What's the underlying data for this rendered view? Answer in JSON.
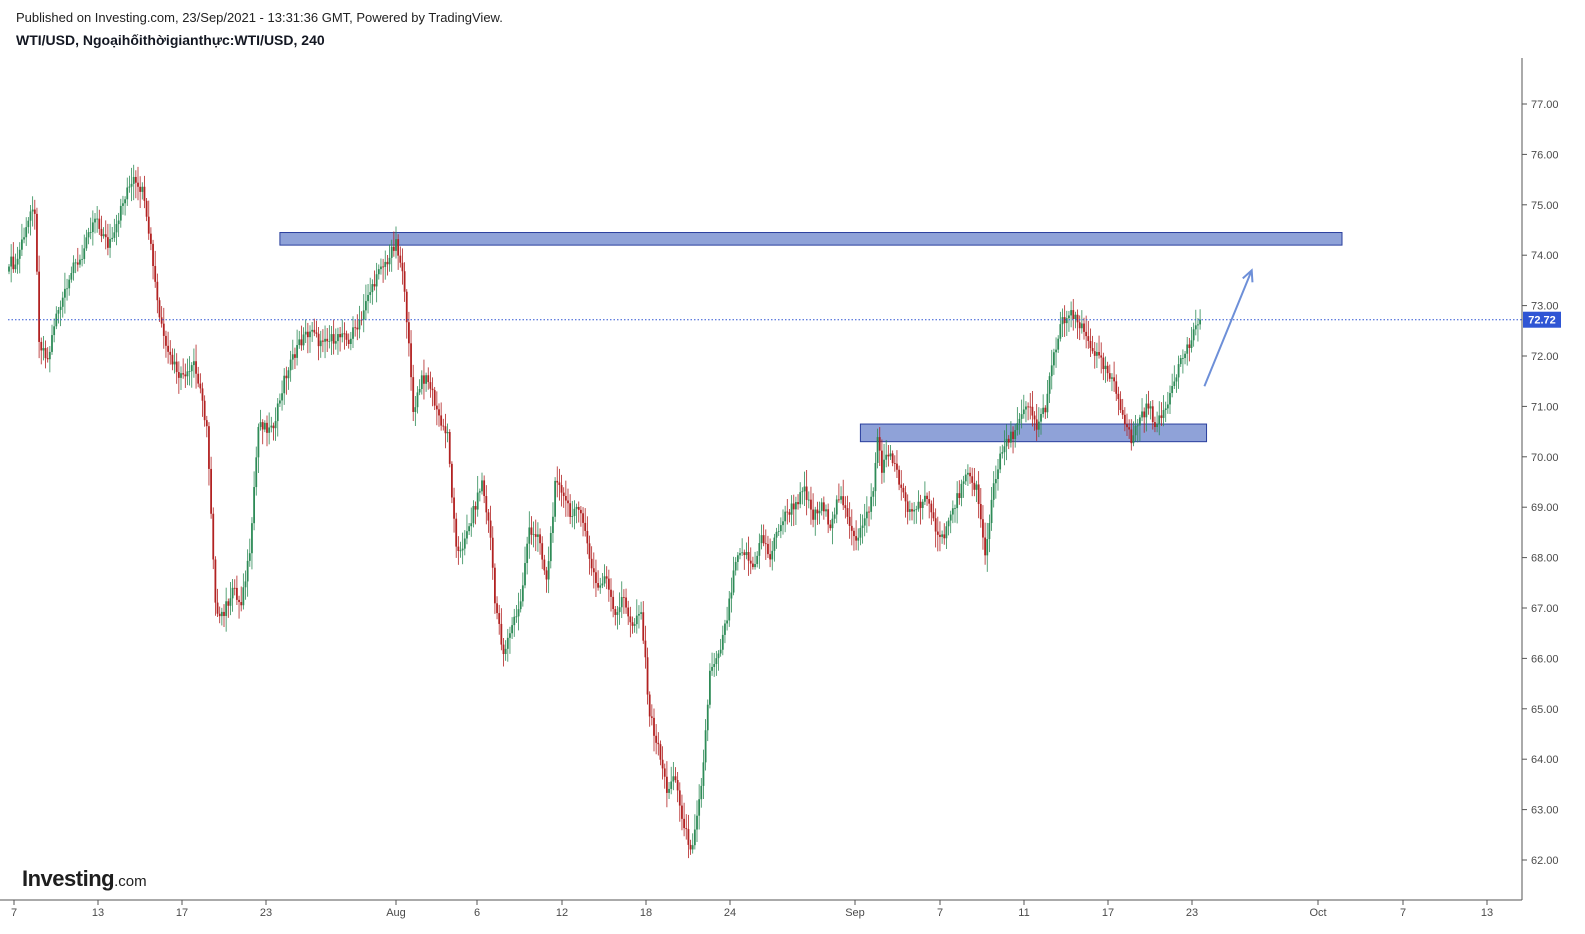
{
  "header": {
    "published": "Published on Investing.com, 23/Sep/2021 - 13:31:36 GMT, Powered by TradingView.",
    "symbol": "WTI/USD, Ngoạihốithờigianthực:WTI/USD, 240"
  },
  "logo": {
    "main": "Investing",
    "domain": ".com"
  },
  "colors": {
    "up": "#2e8b57",
    "down": "#b22222",
    "accent": "#2f55d4",
    "zone_fill": "#8fa2d8",
    "zone_border": "#2a3f9e",
    "arrow": "#6d8fd8"
  },
  "chart_data": {
    "type": "candlestick",
    "ylim": [
      61.6,
      78.0
    ],
    "y_ticks": [
      "62.00",
      "63.00",
      "64.00",
      "65.00",
      "66.00",
      "67.00",
      "68.00",
      "69.00",
      "70.00",
      "71.00",
      "72.00",
      "73.00",
      "74.00",
      "75.00",
      "76.00",
      "77.00"
    ],
    "x_ticks": [
      "7",
      "13",
      "17",
      "23",
      "Aug",
      "6",
      "12",
      "18",
      "24",
      "Sep",
      "7",
      "11",
      "17",
      "23",
      "Oct",
      "7",
      "13"
    ],
    "last_price": "72.72",
    "price_path": [
      [
        0,
        73.9
      ],
      [
        3,
        73.8
      ],
      [
        8,
        74.6
      ],
      [
        12,
        74.9
      ],
      [
        14,
        72.2
      ],
      [
        18,
        71.9
      ],
      [
        22,
        72.8
      ],
      [
        28,
        73.6
      ],
      [
        34,
        74.0
      ],
      [
        40,
        74.7
      ],
      [
        46,
        74.2
      ],
      [
        52,
        74.9
      ],
      [
        58,
        75.6
      ],
      [
        63,
        75.2
      ],
      [
        66,
        74.2
      ],
      [
        70,
        72.8
      ],
      [
        75,
        72.0
      ],
      [
        80,
        71.6
      ],
      [
        86,
        71.9
      ],
      [
        92,
        70.6
      ],
      [
        96,
        67.0
      ],
      [
        100,
        66.9
      ],
      [
        104,
        67.4
      ],
      [
        108,
        67.0
      ],
      [
        112,
        68.2
      ],
      [
        116,
        70.6
      ],
      [
        122,
        70.5
      ],
      [
        128,
        71.5
      ],
      [
        134,
        72.2
      ],
      [
        140,
        72.5
      ],
      [
        146,
        72.2
      ],
      [
        152,
        72.4
      ],
      [
        158,
        72.3
      ],
      [
        164,
        72.8
      ],
      [
        170,
        73.5
      ],
      [
        176,
        73.9
      ],
      [
        180,
        74.2
      ],
      [
        184,
        73.4
      ],
      [
        188,
        70.9
      ],
      [
        192,
        71.6
      ],
      [
        196,
        71.4
      ],
      [
        200,
        70.8
      ],
      [
        204,
        70.4
      ],
      [
        208,
        68.1
      ],
      [
        212,
        68.3
      ],
      [
        216,
        68.9
      ],
      [
        220,
        69.5
      ],
      [
        224,
        68.4
      ],
      [
        226,
        67.2
      ],
      [
        230,
        66.0
      ],
      [
        234,
        66.7
      ],
      [
        238,
        67.1
      ],
      [
        242,
        68.6
      ],
      [
        246,
        68.4
      ],
      [
        250,
        67.5
      ],
      [
        254,
        69.4
      ],
      [
        258,
        69.3
      ],
      [
        262,
        68.8
      ],
      [
        266,
        69.0
      ],
      [
        270,
        68.0
      ],
      [
        274,
        67.4
      ],
      [
        278,
        67.6
      ],
      [
        282,
        66.9
      ],
      [
        286,
        67.2
      ],
      [
        290,
        66.6
      ],
      [
        294,
        66.9
      ],
      [
        298,
        64.9
      ],
      [
        302,
        64.2
      ],
      [
        306,
        63.4
      ],
      [
        310,
        63.6
      ],
      [
        314,
        62.6
      ],
      [
        318,
        62.2
      ],
      [
        322,
        63.4
      ],
      [
        326,
        65.7
      ],
      [
        330,
        66.0
      ],
      [
        334,
        66.8
      ],
      [
        338,
        67.9
      ],
      [
        342,
        68.1
      ],
      [
        346,
        67.8
      ],
      [
        350,
        68.4
      ],
      [
        354,
        68.0
      ],
      [
        358,
        68.6
      ],
      [
        362,
        68.9
      ],
      [
        366,
        69.1
      ],
      [
        370,
        69.3
      ],
      [
        374,
        68.8
      ],
      [
        378,
        69.0
      ],
      [
        382,
        68.7
      ],
      [
        386,
        69.2
      ],
      [
        390,
        68.8
      ],
      [
        394,
        68.4
      ],
      [
        398,
        68.7
      ],
      [
        402,
        69.3
      ],
      [
        404,
        70.4
      ],
      [
        406,
        69.8
      ],
      [
        410,
        70.1
      ],
      [
        414,
        69.5
      ],
      [
        418,
        68.9
      ],
      [
        422,
        69.0
      ],
      [
        426,
        69.2
      ],
      [
        430,
        68.7
      ],
      [
        434,
        68.4
      ],
      [
        438,
        68.8
      ],
      [
        442,
        69.3
      ],
      [
        446,
        69.6
      ],
      [
        450,
        69.4
      ],
      [
        454,
        68.0
      ],
      [
        458,
        69.5
      ],
      [
        462,
        70.1
      ],
      [
        466,
        70.4
      ],
      [
        470,
        70.7
      ],
      [
        474,
        71.0
      ],
      [
        478,
        70.6
      ],
      [
        482,
        71.0
      ],
      [
        486,
        72.0
      ],
      [
        490,
        72.7
      ],
      [
        494,
        72.8
      ],
      [
        498,
        72.6
      ],
      [
        502,
        72.3
      ],
      [
        506,
        72.0
      ],
      [
        510,
        71.7
      ],
      [
        514,
        71.4
      ],
      [
        518,
        70.9
      ],
      [
        522,
        70.3
      ],
      [
        526,
        70.8
      ],
      [
        530,
        71.0
      ],
      [
        534,
        70.6
      ],
      [
        538,
        71.0
      ],
      [
        542,
        71.6
      ],
      [
        546,
        72.0
      ],
      [
        550,
        72.3
      ],
      [
        554,
        72.72
      ]
    ],
    "zones": [
      {
        "start_index": 126,
        "end_x_index": 620,
        "top": 74.45,
        "bottom": 74.2
      },
      {
        "start_index": 396,
        "end_x_index": 557,
        "top": 70.65,
        "bottom": 70.3
      }
    ],
    "arrow": {
      "from": [
        556,
        71.4
      ],
      "to": [
        578,
        73.7
      ]
    }
  }
}
